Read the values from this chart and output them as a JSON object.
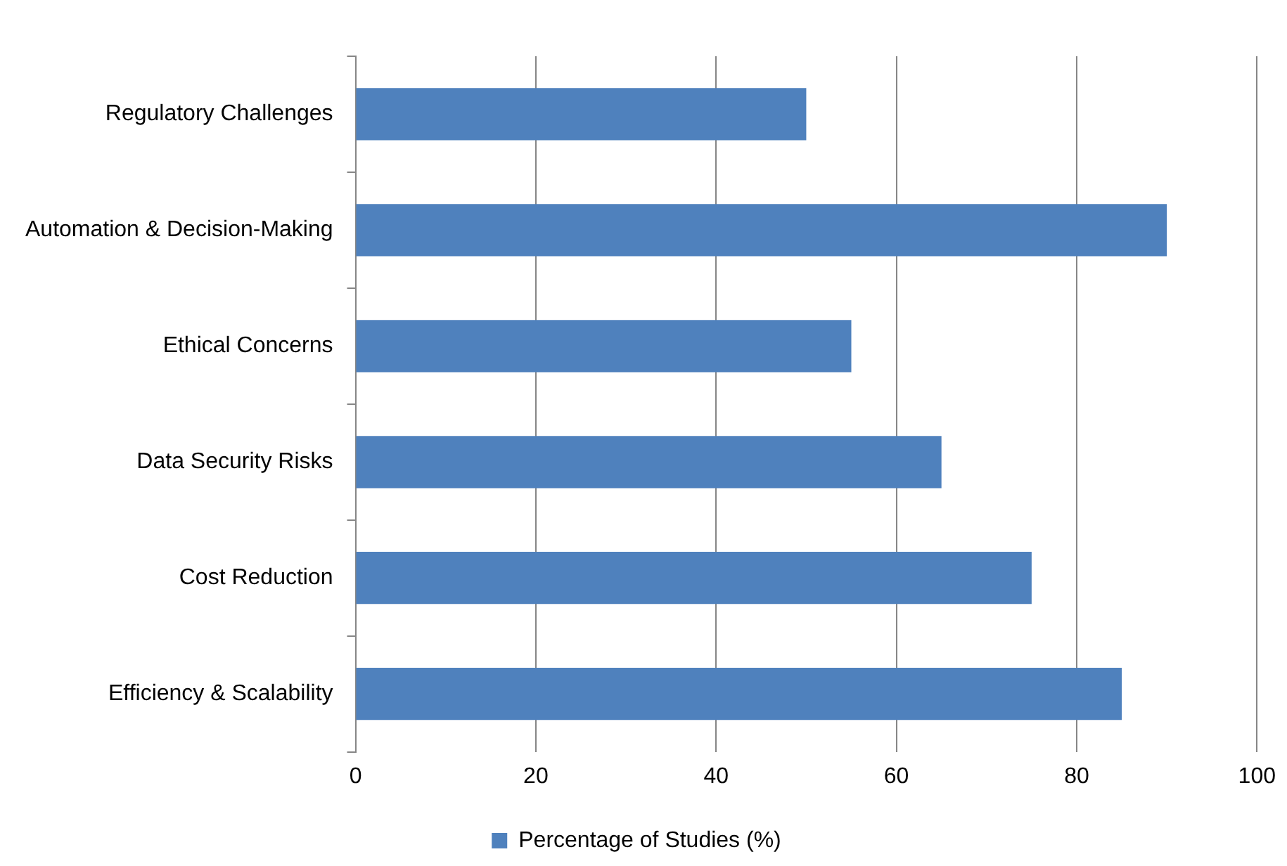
{
  "chart_data": {
    "type": "bar",
    "orientation": "horizontal",
    "categories": [
      "Regulatory Challenges",
      "Automation & Decision-Making",
      "Ethical Concerns",
      "Data Security Risks",
      "Cost Reduction",
      "Efficiency & Scalability"
    ],
    "series": [
      {
        "name": "Percentage of Studies (%)",
        "color": "#4f81bd",
        "values": [
          50,
          90,
          55,
          65,
          75,
          85
        ]
      }
    ],
    "xlim": [
      0,
      100
    ],
    "xticks": [
      0,
      20,
      40,
      60,
      80,
      100
    ],
    "grid": "x",
    "legend": "bottom"
  }
}
